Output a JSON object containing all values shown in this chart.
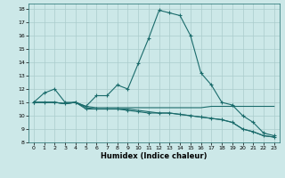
{
  "xlabel": "Humidex (Indice chaleur)",
  "bg_color": "#cce8e8",
  "line_color": "#1a6b6b",
  "grid_color": "#aacccc",
  "xlim": [
    -0.5,
    23.5
  ],
  "ylim": [
    8,
    18.4
  ],
  "xticks": [
    0,
    1,
    2,
    3,
    4,
    5,
    6,
    7,
    8,
    9,
    10,
    11,
    12,
    13,
    14,
    15,
    16,
    17,
    18,
    19,
    20,
    21,
    22,
    23
  ],
  "yticks": [
    8,
    9,
    10,
    11,
    12,
    13,
    14,
    15,
    16,
    17,
    18
  ],
  "line1_x": [
    0,
    1,
    2,
    3,
    4,
    5,
    6,
    7,
    8,
    9,
    10,
    11,
    12,
    13,
    14,
    15,
    16,
    17,
    18,
    19,
    20,
    21,
    22,
    23
  ],
  "line1_y": [
    11.0,
    11.7,
    12.0,
    11.0,
    11.0,
    10.7,
    11.5,
    11.5,
    12.3,
    12.0,
    13.9,
    15.8,
    17.9,
    17.7,
    17.5,
    16.0,
    13.2,
    12.3,
    11.0,
    10.8,
    10.0,
    9.5,
    8.7,
    8.5
  ],
  "line2_x": [
    0,
    1,
    2,
    3,
    4,
    5,
    6,
    7,
    8,
    9,
    10,
    11,
    12,
    13,
    14,
    15,
    16,
    17,
    18,
    19,
    20,
    21,
    22,
    23
  ],
  "line2_y": [
    11.0,
    11.0,
    11.0,
    10.9,
    11.0,
    10.5,
    10.5,
    10.5,
    10.5,
    10.4,
    10.3,
    10.2,
    10.2,
    10.2,
    10.1,
    10.0,
    9.9,
    9.8,
    9.7,
    9.5,
    9.0,
    8.8,
    8.5,
    8.4
  ],
  "line3_x": [
    0,
    1,
    2,
    3,
    4,
    5,
    6,
    7,
    8,
    9,
    10,
    11,
    12,
    13,
    14,
    15,
    16,
    17,
    18,
    19,
    20,
    21,
    22,
    23
  ],
  "line3_y": [
    11.0,
    11.0,
    11.0,
    10.9,
    11.0,
    10.7,
    10.6,
    10.6,
    10.6,
    10.6,
    10.6,
    10.6,
    10.6,
    10.6,
    10.6,
    10.6,
    10.6,
    10.7,
    10.7,
    10.7,
    10.7,
    10.7,
    10.7,
    10.7
  ],
  "line4_x": [
    0,
    1,
    2,
    3,
    4,
    5,
    6,
    7,
    8,
    9,
    10,
    11,
    12,
    13,
    14,
    15,
    16,
    17,
    18,
    19,
    20,
    21,
    22,
    23
  ],
  "line4_y": [
    11.0,
    11.0,
    11.0,
    10.9,
    11.0,
    10.6,
    10.5,
    10.5,
    10.5,
    10.5,
    10.4,
    10.3,
    10.2,
    10.2,
    10.1,
    10.0,
    9.9,
    9.8,
    9.7,
    9.5,
    9.0,
    8.8,
    8.5,
    8.4
  ]
}
